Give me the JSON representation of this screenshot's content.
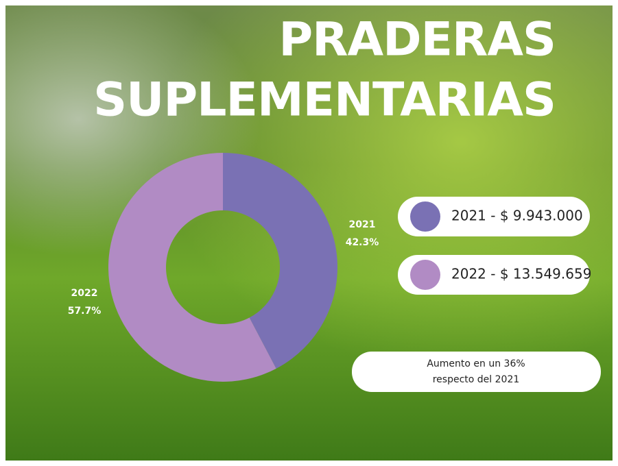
{
  "chart_data": {
    "type": "donut",
    "title_lines": [
      "PRADERAS",
      "SUPLEMENTARIAS"
    ],
    "categories": [
      "2021",
      "2022"
    ],
    "values": [
      42.3,
      57.7
    ],
    "value_labels": [
      "42.3%",
      "57.7%"
    ],
    "colors": [
      "#7a71b4",
      "#b18bc4"
    ],
    "legend_labels": [
      "2021 - $ 9.943.000",
      "2022 - $ 13.549.659"
    ],
    "annotation": [
      "Aumento en un 36%",
      "respecto del 2021"
    ]
  }
}
